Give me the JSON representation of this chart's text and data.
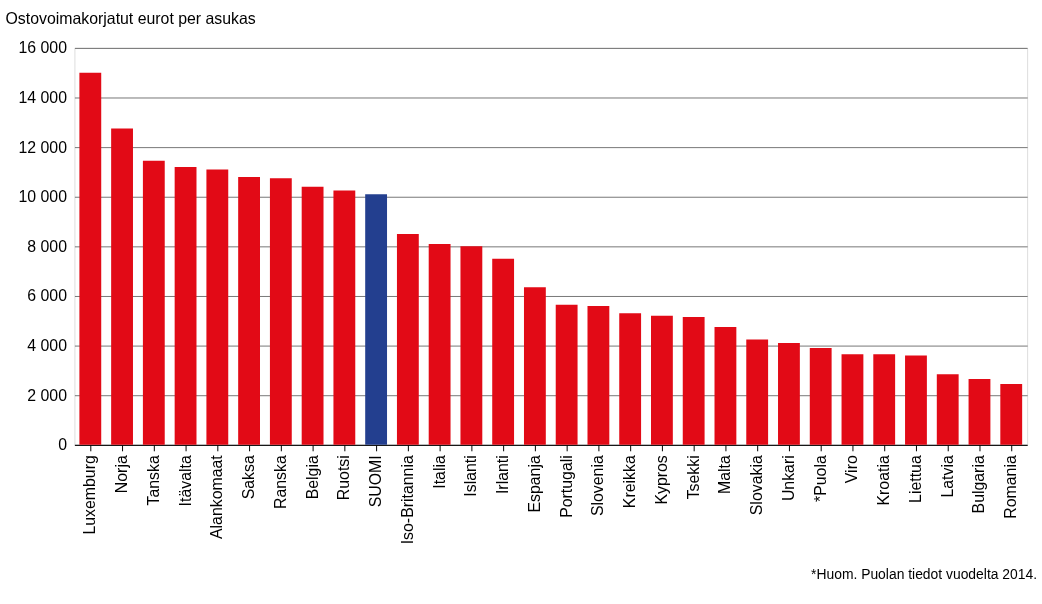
{
  "chart_data": {
    "type": "bar",
    "ylabel": "Ostovoimakorjatut eurot per asukas",
    "categories": [
      "Luxemburg",
      "Norja",
      "Tanska",
      "Itävalta",
      "Alankomaat",
      "Saksa",
      "Ranska",
      "Belgia",
      "Ruotsi",
      "SUOMI",
      "Iso-Britannia",
      "Italia",
      "Islanti",
      "Irlanti",
      "Espanja",
      "Portugali",
      "Slovenia",
      "Kreikka",
      "Kypros",
      "Tsekki",
      "Malta",
      "Slovakia",
      "Unkari",
      "*Puola",
      "Viro",
      "Kroatia",
      "Liettua",
      "Latvia",
      "Bulgaria",
      "Romania"
    ],
    "values": [
      15000,
      12750,
      11450,
      11200,
      11100,
      10800,
      10750,
      10400,
      10250,
      10100,
      8500,
      8100,
      8000,
      7500,
      6350,
      5650,
      5600,
      5300,
      5200,
      5150,
      4750,
      4250,
      4100,
      3900,
      3650,
      3650,
      3600,
      2850,
      2650,
      2450
    ],
    "colors": [
      "#e20a16",
      "#e20a16",
      "#e20a16",
      "#e20a16",
      "#e20a16",
      "#e20a16",
      "#e20a16",
      "#e20a16",
      "#e20a16",
      "#233f8f",
      "#e20a16",
      "#e20a16",
      "#e20a16",
      "#e20a16",
      "#e20a16",
      "#e20a16",
      "#e20a16",
      "#e20a16",
      "#e20a16",
      "#e20a16",
      "#e20a16",
      "#e20a16",
      "#e20a16",
      "#e20a16",
      "#e20a16",
      "#e20a16",
      "#e20a16",
      "#e20a16",
      "#e20a16",
      "#e20a16"
    ],
    "ylim": [
      0,
      16000
    ],
    "yticks": [
      {
        "value": 0,
        "label": "0"
      },
      {
        "value": 2000,
        "label": "2 000"
      },
      {
        "value": 4000,
        "label": "4 000"
      },
      {
        "value": 6000,
        "label": "6 000"
      },
      {
        "value": 8000,
        "label": "8 000"
      },
      {
        "value": 10000,
        "label": "10 000"
      },
      {
        "value": 12000,
        "label": "12 000"
      },
      {
        "value": 14000,
        "label": "14 000"
      },
      {
        "value": 16000,
        "label": "16 000"
      }
    ],
    "grid": "y",
    "annotations": [
      "*Huom. Puolan tiedot vuodelta 2014."
    ]
  }
}
